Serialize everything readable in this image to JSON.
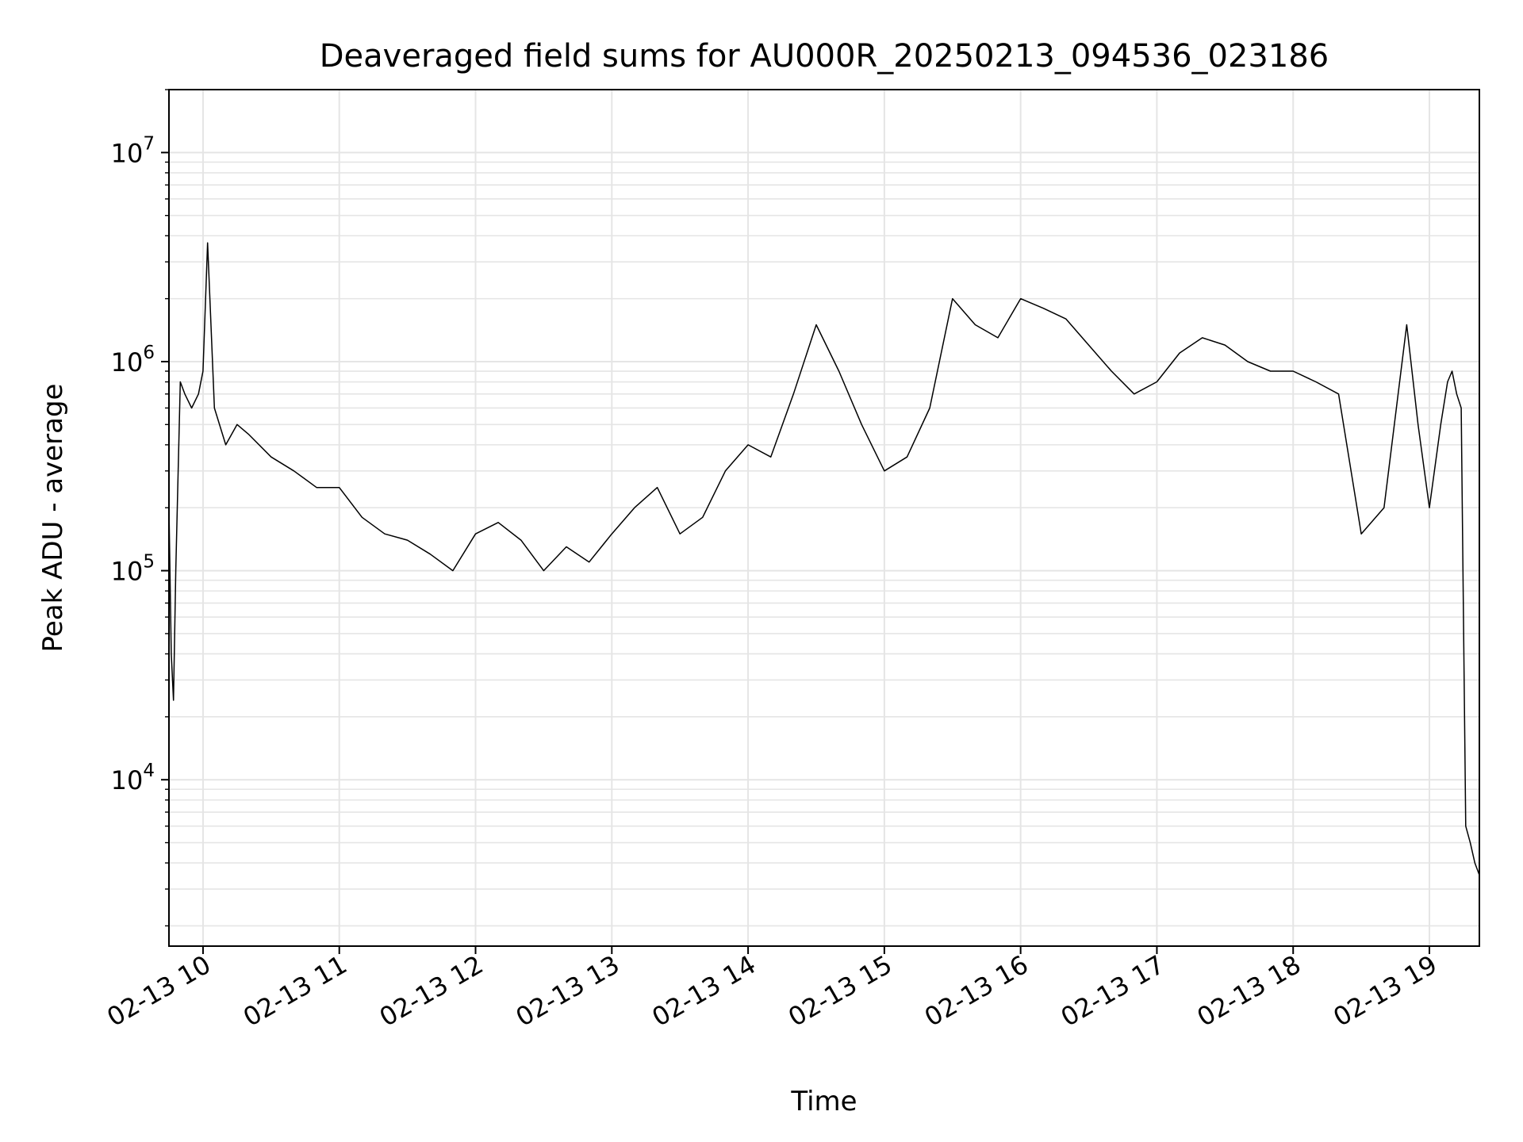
{
  "chart_data": {
    "type": "line",
    "title": "Deaveraged field sums for AU000R_20250213_094536_023186",
    "xlabel": "Time",
    "ylabel": "Peak ADU - average",
    "yscale": "log",
    "xlim": [
      "2025-02-13 09:45",
      "2025-02-13 19:22"
    ],
    "ylim": [
      1600,
      20000000
    ],
    "grid": true,
    "line_color": "#000000",
    "grid_color": "#e5e5e5",
    "x_ticks": [
      {
        "label": "02-13 10",
        "x": "2025-02-13 10:00"
      },
      {
        "label": "02-13 11",
        "x": "2025-02-13 11:00"
      },
      {
        "label": "02-13 12",
        "x": "2025-02-13 12:00"
      },
      {
        "label": "02-13 13",
        "x": "2025-02-13 13:00"
      },
      {
        "label": "02-13 14",
        "x": "2025-02-13 14:00"
      },
      {
        "label": "02-13 15",
        "x": "2025-02-13 15:00"
      },
      {
        "label": "02-13 16",
        "x": "2025-02-13 16:00"
      },
      {
        "label": "02-13 17",
        "x": "2025-02-13 17:00"
      },
      {
        "label": "02-13 18",
        "x": "2025-02-13 18:00"
      },
      {
        "label": "02-13 19",
        "x": "2025-02-13 19:00"
      }
    ],
    "y_ticks": [
      {
        "base": "10",
        "exp": "4",
        "value": 10000
      },
      {
        "base": "10",
        "exp": "5",
        "value": 100000
      },
      {
        "base": "10",
        "exp": "6",
        "value": 1000000
      },
      {
        "base": "10",
        "exp": "7",
        "value": 10000000
      }
    ],
    "series": [
      {
        "x": [
          "2025-02-13 09:45",
          "2025-02-13 09:46",
          "2025-02-13 09:47",
          "2025-02-13 09:48",
          "2025-02-13 09:50",
          "2025-02-13 09:52",
          "2025-02-13 09:55",
          "2025-02-13 09:58",
          "2025-02-13 10:00",
          "2025-02-13 10:02",
          "2025-02-13 10:05",
          "2025-02-13 10:10",
          "2025-02-13 10:15",
          "2025-02-13 10:20",
          "2025-02-13 10:30",
          "2025-02-13 10:40",
          "2025-02-13 10:50",
          "2025-02-13 11:00",
          "2025-02-13 11:10",
          "2025-02-13 11:20",
          "2025-02-13 11:30",
          "2025-02-13 11:40",
          "2025-02-13 11:50",
          "2025-02-13 12:00",
          "2025-02-13 12:10",
          "2025-02-13 12:20",
          "2025-02-13 12:30",
          "2025-02-13 12:40",
          "2025-02-13 12:50",
          "2025-02-13 13:00",
          "2025-02-13 13:10",
          "2025-02-13 13:20",
          "2025-02-13 13:30",
          "2025-02-13 13:40",
          "2025-02-13 13:50",
          "2025-02-13 14:00",
          "2025-02-13 14:10",
          "2025-02-13 14:20",
          "2025-02-13 14:30",
          "2025-02-13 14:40",
          "2025-02-13 14:50",
          "2025-02-13 15:00",
          "2025-02-13 15:10",
          "2025-02-13 15:20",
          "2025-02-13 15:30",
          "2025-02-13 15:40",
          "2025-02-13 15:50",
          "2025-02-13 16:00",
          "2025-02-13 16:10",
          "2025-02-13 16:20",
          "2025-02-13 16:30",
          "2025-02-13 16:40",
          "2025-02-13 16:50",
          "2025-02-13 17:00",
          "2025-02-13 17:10",
          "2025-02-13 17:20",
          "2025-02-13 17:30",
          "2025-02-13 17:40",
          "2025-02-13 17:50",
          "2025-02-13 18:00",
          "2025-02-13 18:10",
          "2025-02-13 18:20",
          "2025-02-13 18:30",
          "2025-02-13 18:40",
          "2025-02-13 18:50",
          "2025-02-13 18:55",
          "2025-02-13 19:00",
          "2025-02-13 19:05",
          "2025-02-13 19:08",
          "2025-02-13 19:10",
          "2025-02-13 19:12",
          "2025-02-13 19:14",
          "2025-02-13 19:16",
          "2025-02-13 19:18",
          "2025-02-13 19:20",
          "2025-02-13 19:22"
        ],
        "y": [
          200000,
          40000,
          24000,
          100000,
          800000,
          700000,
          600000,
          700000,
          900000,
          3700000,
          600000,
          400000,
          500000,
          450000,
          350000,
          300000,
          250000,
          250000,
          180000,
          150000,
          140000,
          120000,
          100000,
          150000,
          170000,
          140000,
          100000,
          130000,
          110000,
          150000,
          200000,
          250000,
          150000,
          180000,
          300000,
          400000,
          350000,
          700000,
          1500000,
          900000,
          500000,
          300000,
          350000,
          600000,
          2000000,
          1500000,
          1300000,
          2000000,
          1800000,
          1600000,
          1200000,
          900000,
          700000,
          800000,
          1100000,
          1300000,
          1200000,
          1000000,
          900000,
          900000,
          800000,
          700000,
          150000,
          200000,
          1500000,
          500000,
          200000,
          500000,
          800000,
          900000,
          700000,
          600000,
          6000,
          5000,
          4000,
          3500
        ]
      }
    ]
  }
}
